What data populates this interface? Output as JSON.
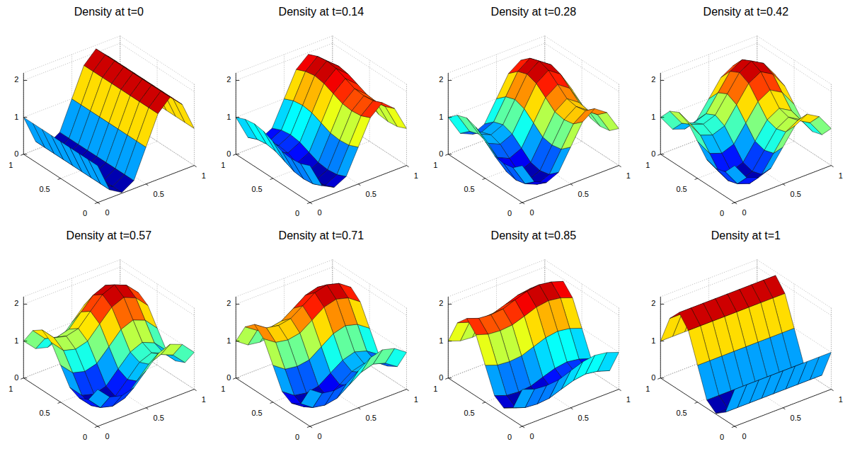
{
  "chart_data": [
    {
      "type": "surface",
      "title": "Density at t=0",
      "x": [
        0,
        0.125,
        0.25,
        0.375,
        0.5,
        0.625,
        0.75,
        0.875,
        1
      ],
      "y": [
        0,
        0.125,
        0.25,
        0.375,
        0.5,
        0.625,
        0.75,
        0.875,
        1
      ],
      "z": [
        [
          1.0,
          0.22,
          0.02,
          0.22,
          1.0,
          1.78,
          2.1,
          1.78,
          1.0
        ],
        [
          1.0,
          0.22,
          0.02,
          0.22,
          1.0,
          1.78,
          2.1,
          1.78,
          1.0
        ],
        [
          1.0,
          0.22,
          0.02,
          0.22,
          1.0,
          1.78,
          2.1,
          1.78,
          1.0
        ],
        [
          1.0,
          0.22,
          0.02,
          0.22,
          1.0,
          1.78,
          2.1,
          1.78,
          1.0
        ],
        [
          1.0,
          0.22,
          0.02,
          0.22,
          1.0,
          1.78,
          2.1,
          1.78,
          1.0
        ],
        [
          1.0,
          0.22,
          0.02,
          0.22,
          1.0,
          1.78,
          2.1,
          1.78,
          1.0
        ],
        [
          1.0,
          0.22,
          0.02,
          0.22,
          1.0,
          1.78,
          2.1,
          1.78,
          1.0
        ],
        [
          1.0,
          0.22,
          0.02,
          0.22,
          1.0,
          1.78,
          2.1,
          1.78,
          1.0
        ],
        [
          1.0,
          0.22,
          0.02,
          0.22,
          1.0,
          1.78,
          2.1,
          1.78,
          1.0
        ]
      ],
      "xlim": [
        0,
        1
      ],
      "ylim": [
        0,
        1
      ],
      "zlim": [
        0,
        2.2
      ],
      "xticks": [
        0,
        0.5,
        1
      ],
      "yticks": [
        0,
        0.5,
        1
      ],
      "zticks": [
        0,
        1,
        2
      ],
      "grid": true
    },
    {
      "type": "surface",
      "title": "Density at t=0.14",
      "x": [
        0,
        0.125,
        0.25,
        0.375,
        0.5,
        0.625,
        0.75,
        0.875,
        1
      ],
      "y": [
        0,
        0.125,
        0.25,
        0.375,
        0.5,
        0.625,
        0.75,
        0.875,
        1
      ],
      "z": [
        [
          1.0,
          0.33,
          0.16,
          0.33,
          1.0,
          1.67,
          1.95,
          1.67,
          1.0
        ],
        [
          0.89,
          0.22,
          0.05,
          0.22,
          0.89,
          1.56,
          1.84,
          1.56,
          0.89
        ],
        [
          0.86,
          0.19,
          0.02,
          0.19,
          0.86,
          1.53,
          1.81,
          1.53,
          0.86
        ],
        [
          0.89,
          0.22,
          0.05,
          0.22,
          0.89,
          1.56,
          1.84,
          1.56,
          0.89
        ],
        [
          1.0,
          0.33,
          0.16,
          0.33,
          1.0,
          1.67,
          1.95,
          1.67,
          1.0
        ],
        [
          1.11,
          0.44,
          0.27,
          0.44,
          1.11,
          1.78,
          2.06,
          1.78,
          1.11
        ],
        [
          1.15,
          0.48,
          0.31,
          0.48,
          1.15,
          1.83,
          2.1,
          1.83,
          1.15
        ],
        [
          1.11,
          0.44,
          0.27,
          0.44,
          1.11,
          1.78,
          2.06,
          1.78,
          1.11
        ],
        [
          1.0,
          0.33,
          0.16,
          0.33,
          1.0,
          1.67,
          1.95,
          1.67,
          1.0
        ]
      ],
      "xlim": [
        0,
        1
      ],
      "ylim": [
        0,
        1
      ],
      "zlim": [
        0,
        2.2
      ],
      "xticks": [
        0,
        0.5,
        1
      ],
      "yticks": [
        0,
        0.5,
        1
      ],
      "zticks": [
        0,
        1,
        2
      ],
      "grid": true
    },
    {
      "type": "surface",
      "title": "Density at t=0.28",
      "x": [
        0,
        0.125,
        0.25,
        0.375,
        0.5,
        0.625,
        0.75,
        0.875,
        1
      ],
      "y": [
        0,
        0.125,
        0.25,
        0.375,
        0.5,
        0.625,
        0.75,
        0.875,
        1
      ],
      "z": [
        [
          1.0,
          0.44,
          0.29,
          0.44,
          1.0,
          1.56,
          1.79,
          1.56,
          1.0
        ],
        [
          0.78,
          0.22,
          0.08,
          0.22,
          0.78,
          1.34,
          1.57,
          1.34,
          0.78
        ],
        [
          0.73,
          0.16,
          0.02,
          0.16,
          0.73,
          1.29,
          1.52,
          1.29,
          0.73
        ],
        [
          0.78,
          0.22,
          0.08,
          0.22,
          0.78,
          1.34,
          1.57,
          1.34,
          0.78
        ],
        [
          1.0,
          0.44,
          0.29,
          0.44,
          1.0,
          1.56,
          1.79,
          1.56,
          1.0
        ],
        [
          1.22,
          0.66,
          0.51,
          0.66,
          1.22,
          1.78,
          2.01,
          1.78,
          1.22
        ],
        [
          1.31,
          0.75,
          0.6,
          0.75,
          1.31,
          1.87,
          2.1,
          1.87,
          1.31
        ],
        [
          1.22,
          0.66,
          0.51,
          0.66,
          1.22,
          1.78,
          2.01,
          1.78,
          1.22
        ],
        [
          1.0,
          0.44,
          0.29,
          0.44,
          1.0,
          1.56,
          1.79,
          1.56,
          1.0
        ]
      ],
      "xlim": [
        0,
        1
      ],
      "ylim": [
        0,
        1
      ],
      "zlim": [
        0,
        2.2
      ],
      "xticks": [
        0,
        0.5,
        1
      ],
      "yticks": [
        0,
        0.5,
        1
      ],
      "zticks": [
        0,
        1,
        2
      ],
      "grid": true
    },
    {
      "type": "surface",
      "title": "Density at t=0.42",
      "x": [
        0,
        0.125,
        0.25,
        0.375,
        0.5,
        0.625,
        0.75,
        0.875,
        1
      ],
      "y": [
        0,
        0.125,
        0.25,
        0.375,
        0.5,
        0.625,
        0.75,
        0.875,
        1
      ],
      "z": [
        [
          1.0,
          0.55,
          0.43,
          0.55,
          1.0,
          1.45,
          1.64,
          1.45,
          1.0
        ],
        [
          0.67,
          0.22,
          0.1,
          0.22,
          0.67,
          1.12,
          1.31,
          1.12,
          0.67
        ],
        [
          0.59,
          0.14,
          0.02,
          0.14,
          0.59,
          1.04,
          1.23,
          1.04,
          0.59
        ],
        [
          0.67,
          0.22,
          0.1,
          0.22,
          0.67,
          1.12,
          1.31,
          1.12,
          0.67
        ],
        [
          1.0,
          0.55,
          0.43,
          0.55,
          1.0,
          1.45,
          1.64,
          1.45,
          1.0
        ],
        [
          1.33,
          0.88,
          0.76,
          0.88,
          1.33,
          1.78,
          1.97,
          1.78,
          1.33
        ],
        [
          1.46,
          1.01,
          0.89,
          1.01,
          1.46,
          1.91,
          2.1,
          1.91,
          1.46
        ],
        [
          1.33,
          0.88,
          0.76,
          0.88,
          1.33,
          1.78,
          1.97,
          1.78,
          1.33
        ],
        [
          1.0,
          0.55,
          0.43,
          0.55,
          1.0,
          1.45,
          1.64,
          1.45,
          1.0
        ]
      ],
      "xlim": [
        0,
        1
      ],
      "ylim": [
        0,
        1
      ],
      "zlim": [
        0,
        2.2
      ],
      "xticks": [
        0,
        0.5,
        1
      ],
      "yticks": [
        0,
        0.5,
        1
      ],
      "zticks": [
        0,
        1,
        2
      ],
      "grid": true
    },
    {
      "type": "surface",
      "title": "Density at t=0.57",
      "x": [
        0,
        0.125,
        0.25,
        0.375,
        0.5,
        0.625,
        0.75,
        0.875,
        1
      ],
      "y": [
        0,
        0.125,
        0.25,
        0.375,
        0.5,
        0.625,
        0.75,
        0.875,
        1
      ],
      "z": [
        [
          1.0,
          0.67,
          0.58,
          0.67,
          1.0,
          1.34,
          1.47,
          1.34,
          1.0
        ],
        [
          0.56,
          0.22,
          0.13,
          0.22,
          0.56,
          0.89,
          1.03,
          0.89,
          0.56
        ],
        [
          0.44,
          0.11,
          0.02,
          0.11,
          0.44,
          0.78,
          0.91,
          0.78,
          0.44
        ],
        [
          0.56,
          0.22,
          0.13,
          0.22,
          0.56,
          0.89,
          1.03,
          0.89,
          0.56
        ],
        [
          1.0,
          0.67,
          0.58,
          0.67,
          1.0,
          1.34,
          1.47,
          1.34,
          1.0
        ],
        [
          1.45,
          1.11,
          1.02,
          1.11,
          1.45,
          1.78,
          1.92,
          1.78,
          1.45
        ],
        [
          1.63,
          1.29,
          1.21,
          1.29,
          1.63,
          1.96,
          2.1,
          1.96,
          1.63
        ],
        [
          1.45,
          1.11,
          1.02,
          1.11,
          1.45,
          1.78,
          1.92,
          1.78,
          1.45
        ],
        [
          1.0,
          0.67,
          0.58,
          0.67,
          1.0,
          1.34,
          1.47,
          1.34,
          1.0
        ]
      ],
      "xlim": [
        0,
        1
      ],
      "ylim": [
        0,
        1
      ],
      "zlim": [
        0,
        2.2
      ],
      "xticks": [
        0,
        0.5,
        1
      ],
      "yticks": [
        0,
        0.5,
        1
      ],
      "zticks": [
        0,
        1,
        2
      ],
      "grid": true
    },
    {
      "type": "surface",
      "title": "Density at t=0.71",
      "x": [
        0,
        0.125,
        0.25,
        0.375,
        0.5,
        0.625,
        0.75,
        0.875,
        1
      ],
      "y": [
        0,
        0.125,
        0.25,
        0.375,
        0.5,
        0.625,
        0.75,
        0.875,
        1
      ],
      "z": [
        [
          1.0,
          0.77,
          0.72,
          0.77,
          1.0,
          1.23,
          1.32,
          1.23,
          1.0
        ],
        [
          0.45,
          0.22,
          0.16,
          0.22,
          0.45,
          0.67,
          0.77,
          0.67,
          0.45
        ],
        [
          0.3,
          0.08,
          0.02,
          0.08,
          0.3,
          0.53,
          0.62,
          0.53,
          0.3
        ],
        [
          0.45,
          0.22,
          0.16,
          0.22,
          0.45,
          0.67,
          0.77,
          0.67,
          0.45
        ],
        [
          1.0,
          0.77,
          0.72,
          0.77,
          1.0,
          1.23,
          1.32,
          1.23,
          1.0
        ],
        [
          1.55,
          1.33,
          1.27,
          1.33,
          1.55,
          1.78,
          1.87,
          1.78,
          1.55
        ],
        [
          1.78,
          1.56,
          1.5,
          1.56,
          1.78,
          2.01,
          2.1,
          2.01,
          1.78
        ],
        [
          1.55,
          1.33,
          1.27,
          1.33,
          1.55,
          1.78,
          1.87,
          1.78,
          1.55
        ],
        [
          1.0,
          0.77,
          0.72,
          0.77,
          1.0,
          1.23,
          1.32,
          1.23,
          1.0
        ]
      ],
      "xlim": [
        0,
        1
      ],
      "ylim": [
        0,
        1
      ],
      "zlim": [
        0,
        2.2
      ],
      "xticks": [
        0,
        0.5,
        1
      ],
      "yticks": [
        0,
        0.5,
        1
      ],
      "zticks": [
        0,
        1,
        2
      ],
      "grid": true
    },
    {
      "type": "surface",
      "title": "Density at t=0.85",
      "x": [
        0,
        0.125,
        0.25,
        0.375,
        0.5,
        0.625,
        0.75,
        0.875,
        1
      ],
      "y": [
        0,
        0.125,
        0.25,
        0.375,
        0.5,
        0.625,
        0.75,
        0.875,
        1
      ],
      "z": [
        [
          1.0,
          0.88,
          0.85,
          0.88,
          1.0,
          1.12,
          1.17,
          1.12,
          1.0
        ],
        [
          0.34,
          0.22,
          0.19,
          0.22,
          0.34,
          0.45,
          0.5,
          0.45,
          0.34
        ],
        [
          0.17,
          0.05,
          0.02,
          0.05,
          0.17,
          0.28,
          0.33,
          0.28,
          0.17
        ],
        [
          0.34,
          0.22,
          0.19,
          0.22,
          0.34,
          0.45,
          0.5,
          0.45,
          0.34
        ],
        [
          1.0,
          0.88,
          0.85,
          0.88,
          1.0,
          1.12,
          1.17,
          1.12,
          1.0
        ],
        [
          1.66,
          1.55,
          1.52,
          1.55,
          1.66,
          1.78,
          1.83,
          1.78,
          1.66
        ],
        [
          1.94,
          1.82,
          1.79,
          1.82,
          1.94,
          2.05,
          2.1,
          2.05,
          1.94
        ],
        [
          1.66,
          1.55,
          1.52,
          1.55,
          1.66,
          1.78,
          1.83,
          1.78,
          1.66
        ],
        [
          1.0,
          0.88,
          0.85,
          0.88,
          1.0,
          1.12,
          1.17,
          1.12,
          1.0
        ]
      ],
      "xlim": [
        0,
        1
      ],
      "ylim": [
        0,
        1
      ],
      "zlim": [
        0,
        2.2
      ],
      "xticks": [
        0,
        0.5,
        1
      ],
      "yticks": [
        0,
        0.5,
        1
      ],
      "zticks": [
        0,
        1,
        2
      ],
      "grid": true
    },
    {
      "type": "surface",
      "title": "Density at t=1",
      "x": [
        0,
        0.125,
        0.25,
        0.375,
        0.5,
        0.625,
        0.75,
        0.875,
        1
      ],
      "y": [
        0,
        0.125,
        0.25,
        0.375,
        0.5,
        0.625,
        0.75,
        0.875,
        1
      ],
      "z": [
        [
          1.0,
          1.0,
          1.0,
          1.0,
          1.0,
          1.0,
          1.0,
          1.0,
          1.0
        ],
        [
          0.22,
          0.22,
          0.22,
          0.22,
          0.22,
          0.22,
          0.22,
          0.22,
          0.22
        ],
        [
          0.02,
          0.02,
          0.02,
          0.02,
          0.02,
          0.02,
          0.02,
          0.02,
          0.02
        ],
        [
          0.22,
          0.22,
          0.22,
          0.22,
          0.22,
          0.22,
          0.22,
          0.22,
          0.22
        ],
        [
          1.0,
          1.0,
          1.0,
          1.0,
          1.0,
          1.0,
          1.0,
          1.0,
          1.0
        ],
        [
          1.78,
          1.78,
          1.78,
          1.78,
          1.78,
          1.78,
          1.78,
          1.78,
          1.78
        ],
        [
          2.1,
          2.1,
          2.1,
          2.1,
          2.1,
          2.1,
          2.1,
          2.1,
          2.1
        ],
        [
          1.78,
          1.78,
          1.78,
          1.78,
          1.78,
          1.78,
          1.78,
          1.78,
          1.78
        ],
        [
          1.0,
          1.0,
          1.0,
          1.0,
          1.0,
          1.0,
          1.0,
          1.0,
          1.0
        ]
      ],
      "xlim": [
        0,
        1
      ],
      "ylim": [
        0,
        1
      ],
      "zlim": [
        0,
        2.2
      ],
      "xticks": [
        0,
        0.5,
        1
      ],
      "yticks": [
        0,
        0.5,
        1
      ],
      "zticks": [
        0,
        1,
        2
      ],
      "grid": true
    }
  ]
}
